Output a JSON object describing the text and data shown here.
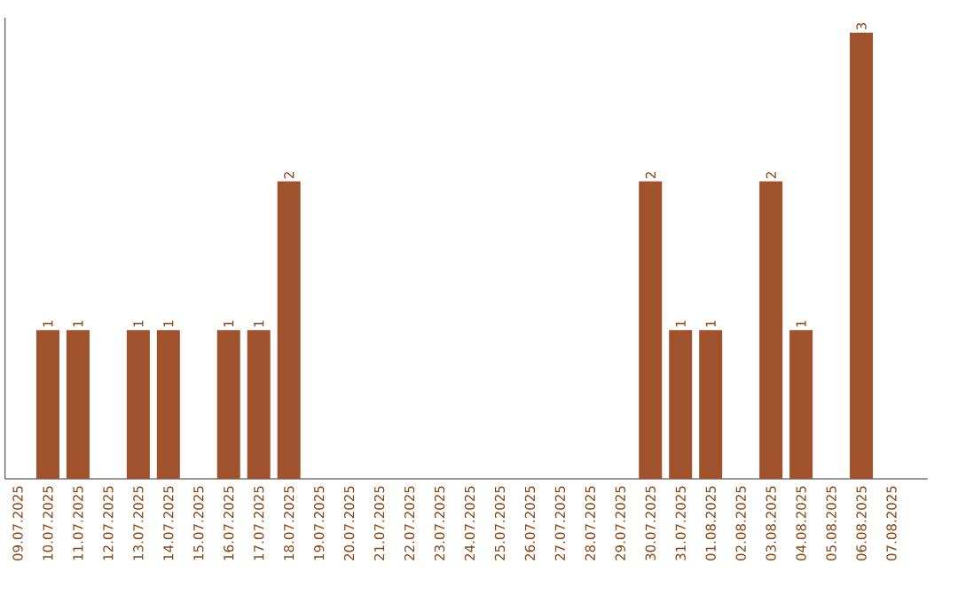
{
  "chart_data": {
    "type": "bar",
    "categories": [
      "09.07.2025",
      "10.07.2025",
      "11.07.2025",
      "12.07.2025",
      "13.07.2025",
      "14.07.2025",
      "15.07.2025",
      "16.07.2025",
      "17.07.2025",
      "18.07.2025",
      "19.07.2025",
      "20.07.2025",
      "21.07.2025",
      "22.07.2025",
      "23.07.2025",
      "24.07.2025",
      "25.07.2025",
      "26.07.2025",
      "27.07.2025",
      "28.07.2025",
      "29.07.2025",
      "30.07.2025",
      "31.07.2025",
      "01.08.2025",
      "02.08.2025",
      "03.08.2025",
      "04.08.2025",
      "05.08.2025",
      "06.08.2025",
      "07.08.2025"
    ],
    "values": [
      0,
      1,
      1,
      0,
      1,
      1,
      0,
      1,
      1,
      2,
      0,
      0,
      0,
      0,
      0,
      0,
      0,
      0,
      0,
      0,
      0,
      2,
      1,
      1,
      0,
      2,
      1,
      0,
      3,
      0
    ],
    "value_labels": [
      null,
      "1",
      "1",
      null,
      "1",
      "1",
      null,
      "1",
      "1",
      "2",
      null,
      null,
      null,
      null,
      null,
      null,
      null,
      null,
      null,
      null,
      null,
      "2",
      "1",
      "1",
      null,
      "2",
      "1",
      null,
      "3",
      null
    ],
    "color": "#a0522d",
    "ylim": [
      0,
      3.1
    ],
    "tick_labels": "x"
  }
}
